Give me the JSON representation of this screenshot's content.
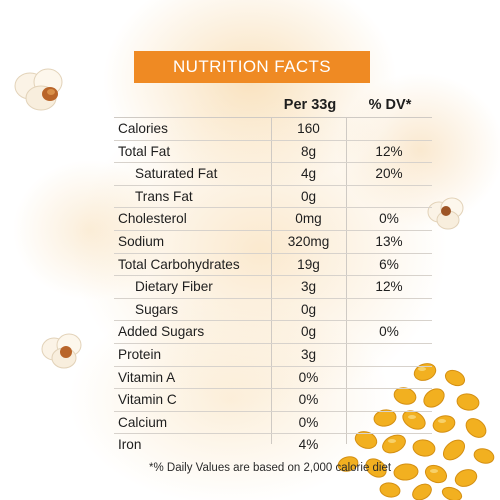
{
  "title": "NUTRITION FACTS",
  "columns": {
    "per": "Per 33g",
    "dv": "% DV*"
  },
  "rows": [
    {
      "label": "Calories",
      "amount": "160",
      "dv": ""
    },
    {
      "label": "Total Fat",
      "amount": "8g",
      "dv": "12%"
    },
    {
      "label": "Saturated Fat",
      "amount": "4g",
      "dv": "20%"
    },
    {
      "label": "Trans Fat",
      "amount": "0g",
      "dv": ""
    },
    {
      "label": "Cholesterol",
      "amount": "0mg",
      "dv": "0%"
    },
    {
      "label": "Sodium",
      "amount": "320mg",
      "dv": "13%"
    },
    {
      "label": "Total Carbohydrates",
      "amount": "19g",
      "dv": "6%"
    },
    {
      "label": "Dietary Fiber",
      "amount": "3g",
      "dv": "12%"
    },
    {
      "label": "Sugars",
      "amount": "0g",
      "dv": ""
    },
    {
      "label": "Added Sugars",
      "amount": "0g",
      "dv": "0%"
    },
    {
      "label": "Protein",
      "amount": "3g",
      "dv": ""
    },
    {
      "label": "Vitamin A",
      "amount": "0%",
      "dv": ""
    },
    {
      "label": "Vitamin C",
      "amount": "0%",
      "dv": ""
    },
    {
      "label": "Calcium",
      "amount": "0%",
      "dv": ""
    },
    {
      "label": "Iron",
      "amount": "4%",
      "dv": ""
    }
  ],
  "footnote": "*% Daily Values are based on 2,000 calorie diet",
  "colors": {
    "banner": "#ef8a23",
    "wash": "#f7d8a8",
    "kernel": "#f2b020",
    "popcorn": "#fbf3e6"
  }
}
